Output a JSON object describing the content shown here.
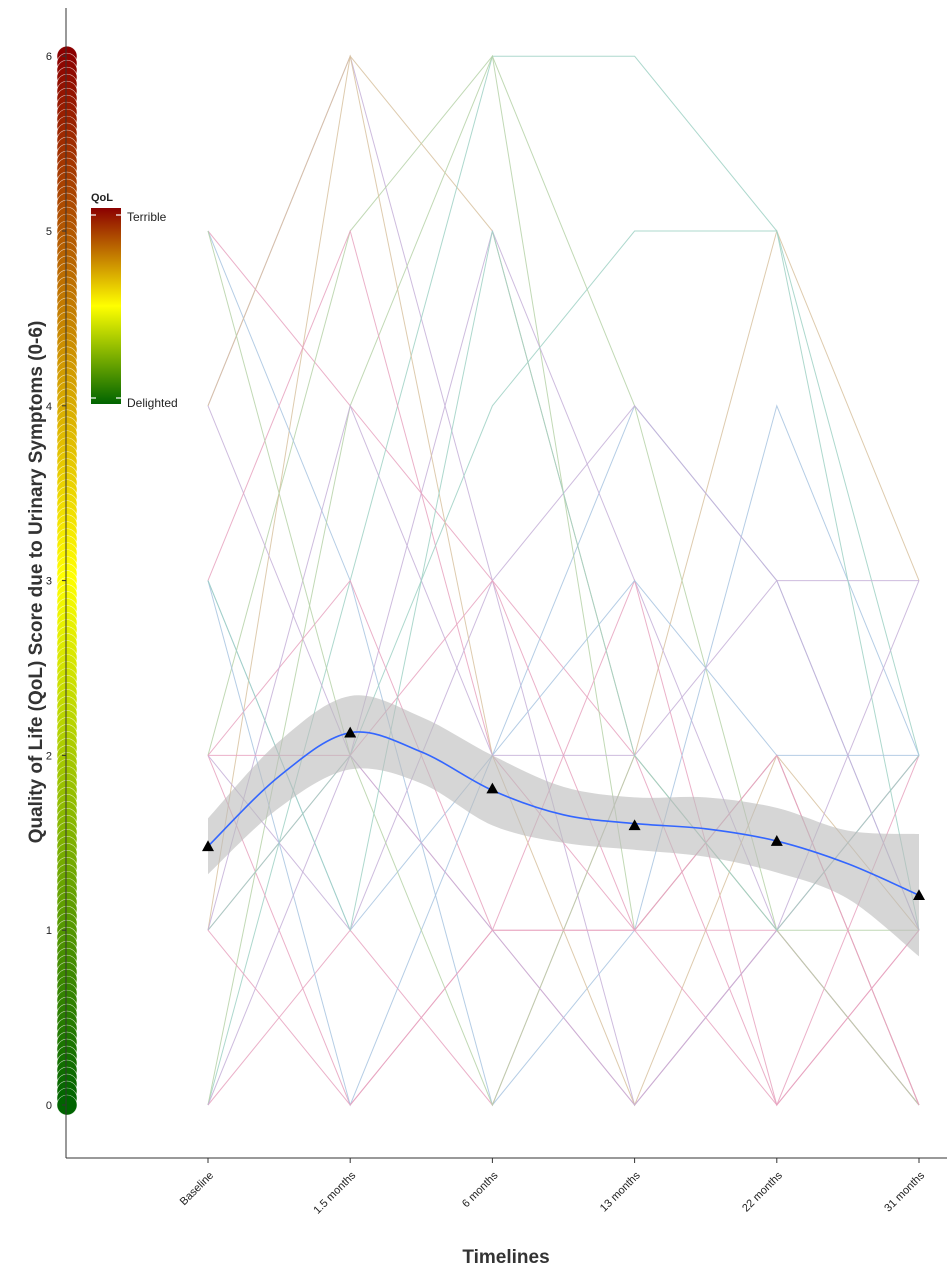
{
  "chart_data": {
    "type": "line",
    "title": "",
    "xlabel": "Timelines",
    "ylabel": "Quality of Life (QoL) Score due to Urinary Symptoms (0-6)",
    "categories": [
      "Baseline",
      "1.5 months",
      "6 months",
      "13 months",
      "22 months",
      "31 months"
    ],
    "ylim": [
      -0.3,
      6.3
    ],
    "yticks": [
      0,
      1,
      2,
      3,
      4,
      5,
      6
    ],
    "grid": false,
    "mean_points": [
      {
        "x": "Baseline",
        "y": 1.48
      },
      {
        "x": "1.5 months",
        "y": 2.13
      },
      {
        "x": "6 months",
        "y": 1.81
      },
      {
        "x": "13 months",
        "y": 1.6
      },
      {
        "x": "22 months",
        "y": 1.51
      },
      {
        "x": "31 months",
        "y": 1.2
      }
    ],
    "smooth_fit": {
      "color": "#3366ff",
      "x": [
        0,
        0.5,
        1,
        1.5,
        2,
        2.5,
        3,
        3.5,
        4,
        4.5,
        5
      ],
      "y": [
        1.48,
        1.88,
        2.13,
        2.02,
        1.8,
        1.66,
        1.61,
        1.58,
        1.51,
        1.38,
        1.2
      ],
      "ci_low": [
        1.32,
        1.7,
        1.92,
        1.84,
        1.6,
        1.5,
        1.46,
        1.42,
        1.33,
        1.18,
        0.85
      ],
      "ci_high": [
        1.64,
        2.08,
        2.34,
        2.22,
        2.0,
        1.82,
        1.76,
        1.76,
        1.7,
        1.57,
        1.55
      ]
    },
    "legend": {
      "title": "QoL",
      "labels": [
        "Terrible",
        "Delighted"
      ],
      "placement": "top-left",
      "gradient": [
        "#8b0000",
        "#ffff00",
        "#006400"
      ]
    },
    "patient_trajectories": [
      {
        "color": "#e7a3c0",
        "values": [
          5,
          4,
          3,
          2,
          1,
          0
        ]
      },
      {
        "color": "#c5b0d8",
        "values": [
          4,
          6,
          3,
          0,
          1,
          2
        ]
      },
      {
        "color": "#a8c4e0",
        "values": [
          3,
          1,
          2,
          4,
          3,
          1
        ]
      },
      {
        "color": "#b6d2a8",
        "values": [
          2,
          5,
          6,
          1,
          2,
          0
        ]
      },
      {
        "color": "#d8c2a0",
        "values": [
          1,
          6,
          5,
          2,
          5,
          3
        ]
      },
      {
        "color": "#9fd1c4",
        "values": [
          0,
          3,
          6,
          6,
          5,
          2
        ]
      },
      {
        "color": "#e7a3c0",
        "values": [
          2,
          0,
          1,
          0,
          1,
          2
        ]
      },
      {
        "color": "#c5b0d8",
        "values": [
          4,
          2,
          5,
          3,
          1,
          0
        ]
      },
      {
        "color": "#e7a3c0",
        "values": [
          1,
          2,
          1,
          3,
          0,
          1
        ]
      },
      {
        "color": "#a8c4e0",
        "values": [
          5,
          3,
          0,
          1,
          4,
          2
        ]
      },
      {
        "color": "#b6d2a8",
        "values": [
          0,
          4,
          6,
          4,
          1,
          1
        ]
      },
      {
        "color": "#e7a3c0",
        "values": [
          3,
          5,
          2,
          1,
          2,
          0
        ]
      },
      {
        "color": "#c5b0d8",
        "values": [
          2,
          1,
          3,
          4,
          3,
          3
        ]
      },
      {
        "color": "#9fd1c4",
        "values": [
          1,
          2,
          4,
          5,
          5,
          1
        ]
      },
      {
        "color": "#e7a3c0",
        "values": [
          0,
          1,
          0,
          2,
          0,
          2
        ]
      },
      {
        "color": "#d8c2a0",
        "values": [
          4,
          6,
          2,
          0,
          2,
          1
        ]
      },
      {
        "color": "#e7a3c0",
        "values": [
          2,
          3,
          1,
          1,
          1,
          0
        ]
      },
      {
        "color": "#a8c4e0",
        "values": [
          3,
          0,
          2,
          3,
          2,
          2
        ]
      },
      {
        "color": "#c5b0d8",
        "values": [
          1,
          4,
          2,
          2,
          3,
          1
        ]
      },
      {
        "color": "#b6d2a8",
        "values": [
          5,
          2,
          0,
          2,
          1,
          0
        ]
      },
      {
        "color": "#e7a3c0",
        "values": [
          2,
          2,
          3,
          1,
          0,
          1
        ]
      },
      {
        "color": "#c5b0d8",
        "values": [
          0,
          2,
          1,
          0,
          1,
          3
        ]
      },
      {
        "color": "#e7a3c0",
        "values": [
          1,
          0,
          1,
          1,
          2,
          0
        ]
      },
      {
        "color": "#9fd1c4",
        "values": [
          3,
          1,
          5,
          2,
          1,
          2
        ]
      }
    ]
  }
}
